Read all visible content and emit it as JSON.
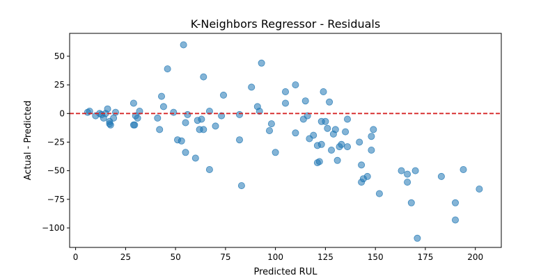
{
  "chart_data": {
    "type": "scatter",
    "title": "K-Neighbors Regressor - Residuals",
    "xlabel": "Predicted RUL",
    "ylabel": "Actual - Predicted",
    "xlim": [
      -3,
      213
    ],
    "ylim": [
      -117,
      70
    ],
    "xticks": [
      0,
      25,
      50,
      75,
      100,
      125,
      150,
      175,
      200
    ],
    "yticks": [
      50,
      25,
      0,
      -25,
      -50,
      -75,
      -100
    ],
    "ytick_labels": [
      "50",
      "25",
      "0",
      "−25",
      "−50",
      "−75",
      "−100"
    ],
    "grid": false,
    "reference_line": {
      "y": 0,
      "style": "dashed",
      "color": "#d62728"
    },
    "point_color": "#1f77b4",
    "point_alpha": 0.55,
    "points": [
      [
        6,
        1
      ],
      [
        7,
        2
      ],
      [
        10,
        -2
      ],
      [
        12,
        0
      ],
      [
        13,
        -1
      ],
      [
        14,
        -4
      ],
      [
        15,
        0
      ],
      [
        16,
        4
      ],
      [
        17,
        -7
      ],
      [
        17,
        -9
      ],
      [
        17.5,
        -10
      ],
      [
        19,
        -4
      ],
      [
        20,
        1
      ],
      [
        29,
        9
      ],
      [
        29,
        -10
      ],
      [
        29.5,
        -10
      ],
      [
        30,
        -2
      ],
      [
        31,
        -4
      ],
      [
        32,
        2
      ],
      [
        41,
        -4
      ],
      [
        42,
        -14
      ],
      [
        43,
        15
      ],
      [
        44,
        6
      ],
      [
        46,
        39
      ],
      [
        49,
        1
      ],
      [
        51,
        -23
      ],
      [
        53,
        -24
      ],
      [
        54,
        60
      ],
      [
        55,
        -8
      ],
      [
        56,
        -1
      ],
      [
        55,
        -34
      ],
      [
        60,
        -39
      ],
      [
        61,
        -6
      ],
      [
        62,
        -14
      ],
      [
        63,
        -5
      ],
      [
        64,
        -14
      ],
      [
        64,
        32
      ],
      [
        67,
        2
      ],
      [
        67,
        -49
      ],
      [
        70,
        -11
      ],
      [
        73,
        -2
      ],
      [
        74,
        16
      ],
      [
        82,
        -23
      ],
      [
        82,
        -1
      ],
      [
        83,
        -63
      ],
      [
        88,
        23
      ],
      [
        91,
        6
      ],
      [
        92,
        2
      ],
      [
        93,
        44
      ],
      [
        97,
        -15
      ],
      [
        98,
        -9
      ],
      [
        100,
        -34
      ],
      [
        105,
        19
      ],
      [
        105,
        9
      ],
      [
        110,
        25
      ],
      [
        110,
        -17
      ],
      [
        114,
        -5
      ],
      [
        115,
        11
      ],
      [
        116,
        -2
      ],
      [
        117,
        -22
      ],
      [
        119,
        -19
      ],
      [
        121,
        -28
      ],
      [
        121,
        -43
      ],
      [
        122,
        -42
      ],
      [
        123,
        -7
      ],
      [
        123,
        -27
      ],
      [
        124,
        19
      ],
      [
        125,
        -7
      ],
      [
        126,
        -13
      ],
      [
        127,
        10
      ],
      [
        128,
        -32
      ],
      [
        129,
        -18
      ],
      [
        130,
        -14
      ],
      [
        131,
        -41
      ],
      [
        132,
        -29
      ],
      [
        133,
        -27
      ],
      [
        135,
        -16
      ],
      [
        136,
        -29
      ],
      [
        136,
        -5
      ],
      [
        142,
        -25
      ],
      [
        143,
        -45
      ],
      [
        143,
        -60
      ],
      [
        144,
        -57
      ],
      [
        146,
        -55
      ],
      [
        148,
        -20
      ],
      [
        148,
        -32
      ],
      [
        149,
        -14
      ],
      [
        152,
        -70
      ],
      [
        163,
        -50
      ],
      [
        166,
        -53
      ],
      [
        166,
        -60
      ],
      [
        168,
        -78
      ],
      [
        170,
        -50
      ],
      [
        171,
        -109
      ],
      [
        183,
        -55
      ],
      [
        190,
        -78
      ],
      [
        190,
        -93
      ],
      [
        194,
        -49
      ],
      [
        202,
        -66
      ]
    ]
  }
}
